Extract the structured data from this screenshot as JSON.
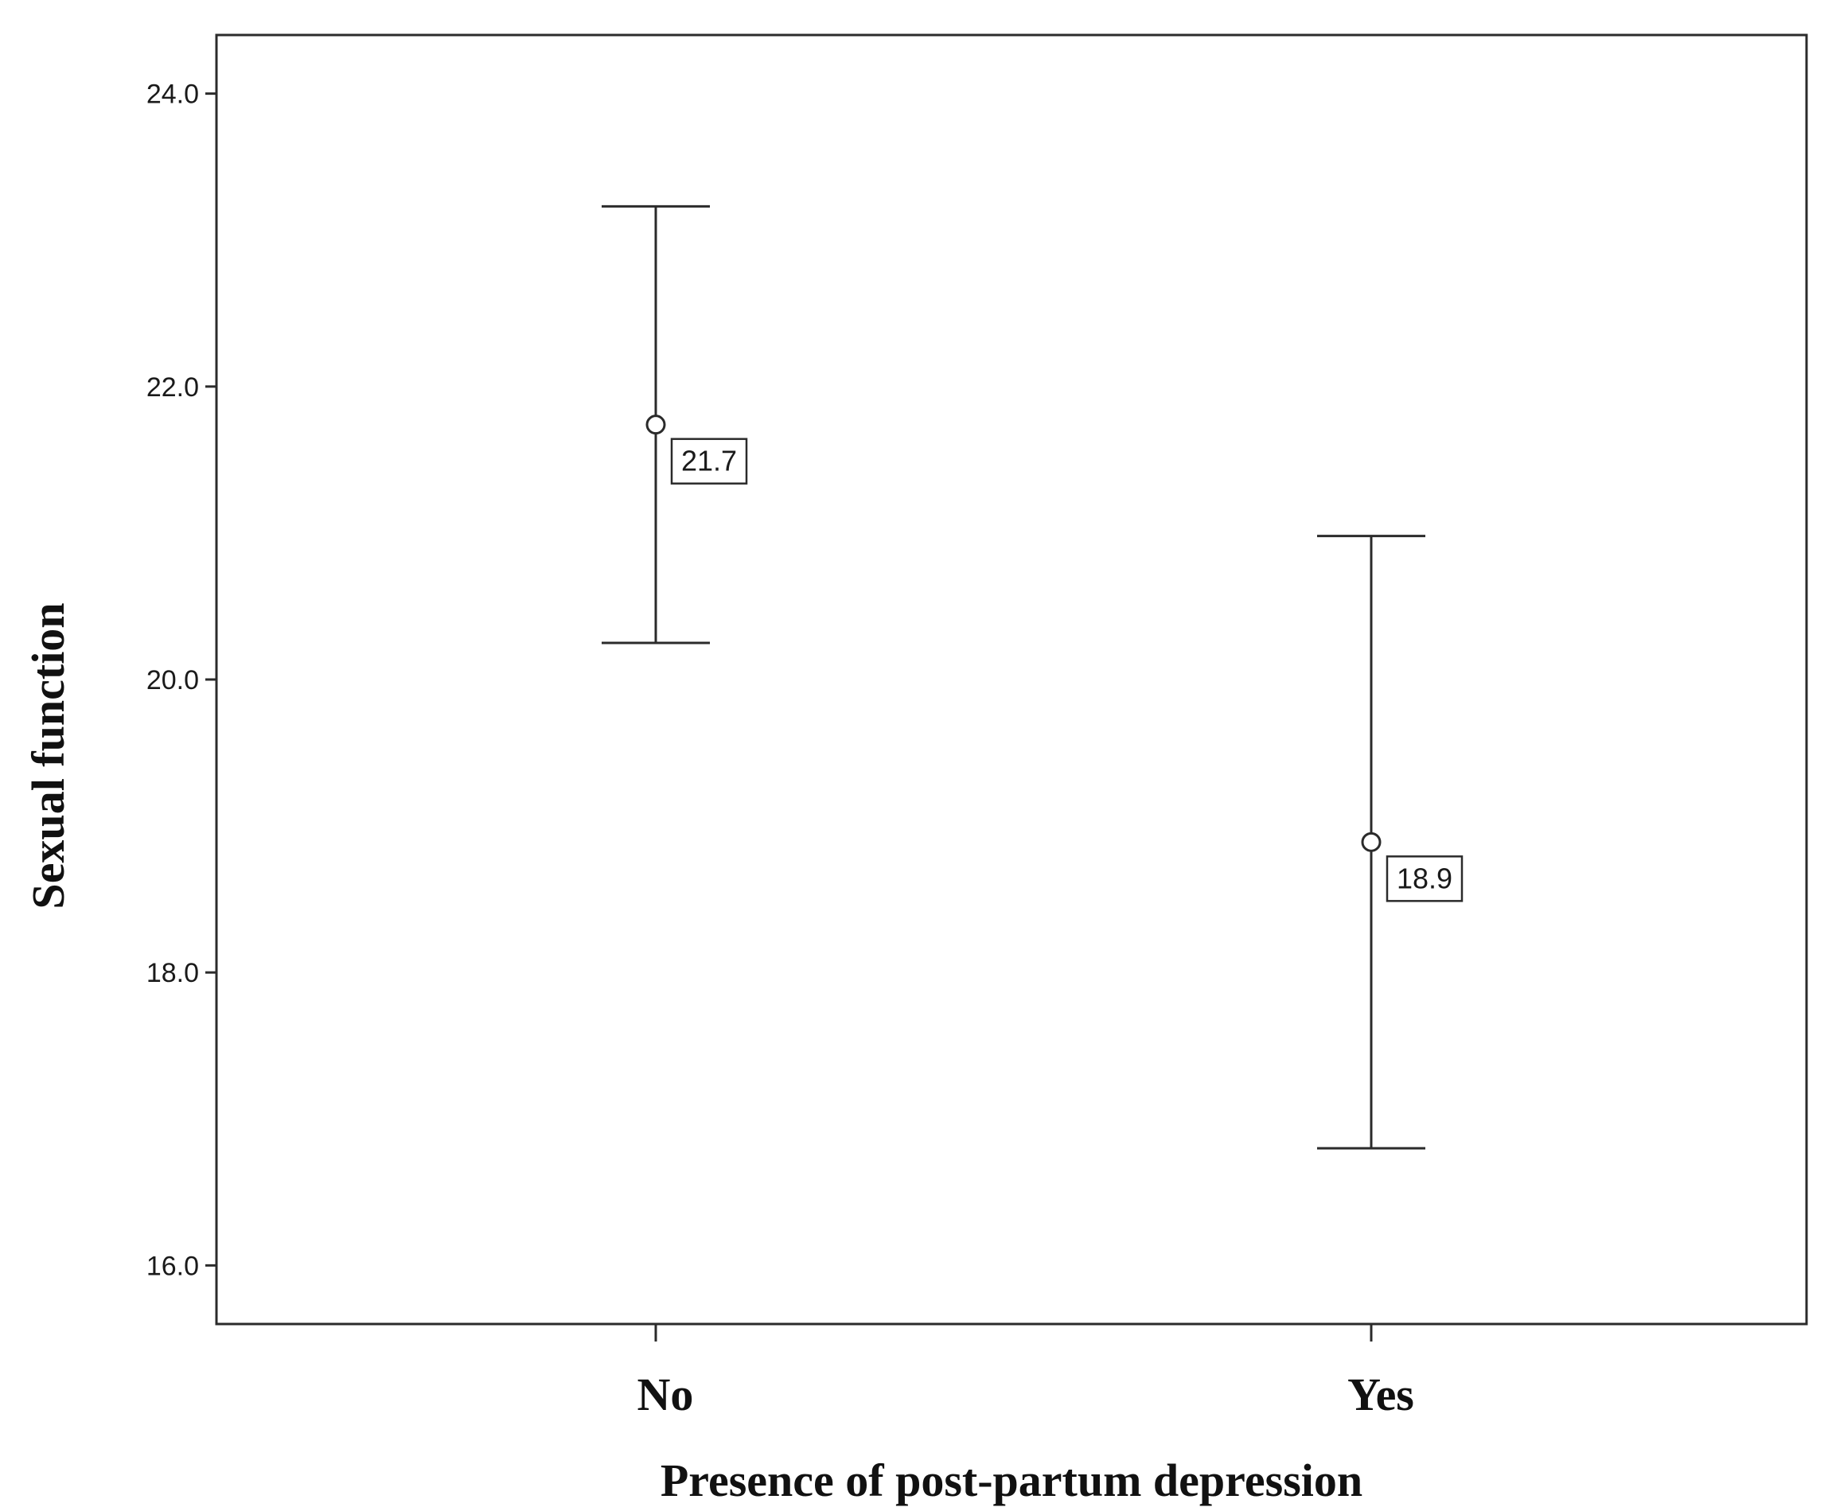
{
  "chart_data": {
    "type": "scatter",
    "subtype": "error-bar",
    "title": "",
    "xlabel": "Presence of post-partum depression",
    "ylabel": "Sexual function",
    "categories": [
      "No",
      "Yes"
    ],
    "ylim": [
      15.6,
      24.4
    ],
    "yticks": [
      16.0,
      18.0,
      20.0,
      22.0,
      24.0
    ],
    "ytick_labels": [
      "16.0",
      "18.0",
      "20.0",
      "22.0",
      "24.0"
    ],
    "grid": false,
    "legend": "none",
    "points": [
      {
        "category": "No",
        "mean": 21.74,
        "lower": 20.25,
        "upper": 23.23,
        "label": "21.7"
      },
      {
        "category": "Yes",
        "mean": 18.89,
        "lower": 16.8,
        "upper": 20.98,
        "label": "18.9"
      }
    ]
  },
  "colors": {
    "line": "#2b2b2b",
    "background": "#ffffff"
  }
}
